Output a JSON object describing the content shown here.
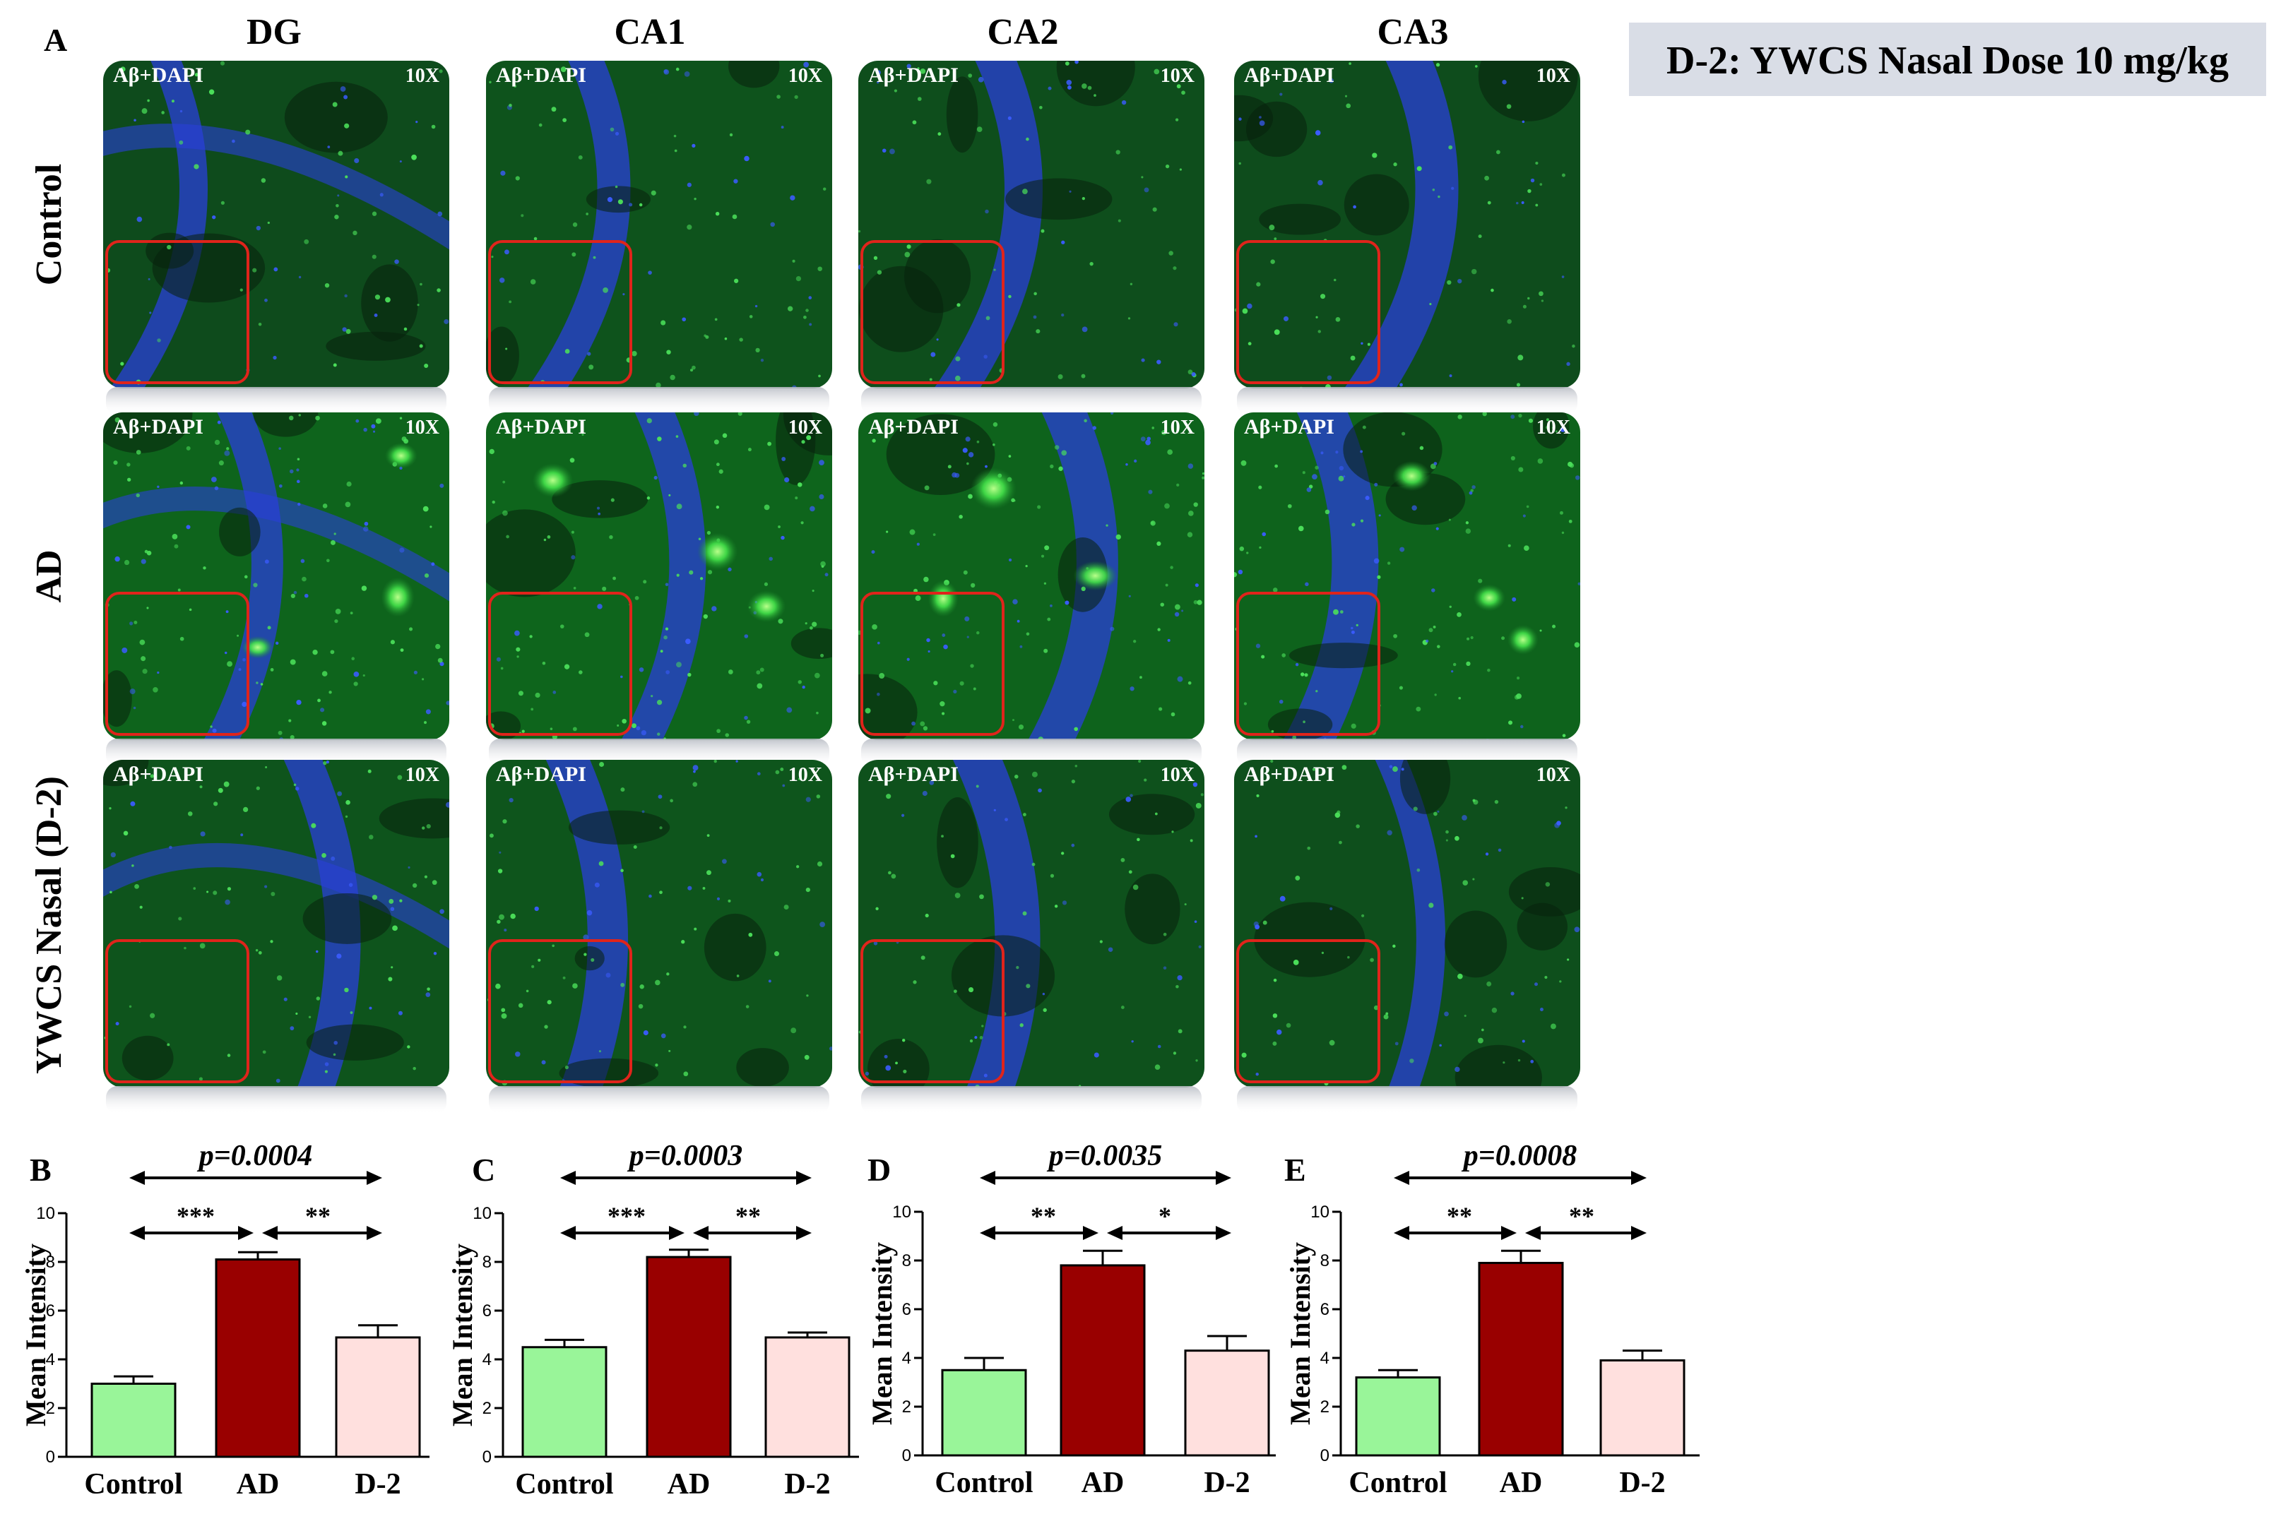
{
  "panel_a_label": "A",
  "dose_banner": "D-2: YWCS Nasal Dose 10 mg/kg",
  "columns": [
    "DG",
    "CA1",
    "CA2",
    "CA3"
  ],
  "rows": [
    "Control",
    "AD",
    "YWCS Nasal (D-2)"
  ],
  "image_stain_label": "Aβ+DAPI",
  "image_magnification": "10X",
  "stain_levels": [
    [
      0.3,
      0.45,
      0.35,
      0.32
    ],
    [
      0.8,
      0.82,
      0.78,
      0.78
    ],
    [
      0.48,
      0.49,
      0.42,
      0.38
    ]
  ],
  "colors": {
    "control": "#99f599",
    "ad": "#990000",
    "d2": "#ffe0de",
    "inset_box": "#e0241b",
    "tissue_green": "#1e7a28",
    "nuclei_blue": "#2a3fd8",
    "banner_bg": "#d9dde6"
  },
  "chart_data": [
    {
      "type": "bar",
      "panel": "B",
      "p_value": "p=0.0004",
      "categories": [
        "Control",
        "AD",
        "D-2"
      ],
      "values": [
        3.0,
        8.1,
        4.9
      ],
      "errors": [
        0.3,
        0.3,
        0.5
      ],
      "ylabel": "Mean Intensity",
      "ylim": [
        0,
        10
      ],
      "yticks": [
        0,
        2,
        4,
        6,
        8,
        10
      ],
      "sig_left": "***",
      "sig_right": "**"
    },
    {
      "type": "bar",
      "panel": "C",
      "p_value": "p=0.0003",
      "categories": [
        "Control",
        "AD",
        "D-2"
      ],
      "values": [
        4.5,
        8.2,
        4.9
      ],
      "errors": [
        0.3,
        0.3,
        0.2
      ],
      "ylabel": "Mean Intensity",
      "ylim": [
        0,
        10
      ],
      "yticks": [
        0,
        2,
        4,
        6,
        8,
        10
      ],
      "sig_left": "***",
      "sig_right": "**"
    },
    {
      "type": "bar",
      "panel": "D",
      "p_value": "p=0.0035",
      "categories": [
        "Control",
        "AD",
        "D-2"
      ],
      "values": [
        3.5,
        7.8,
        4.3
      ],
      "errors": [
        0.5,
        0.6,
        0.6
      ],
      "ylabel": "Mean Intensity",
      "ylim": [
        0,
        10
      ],
      "yticks": [
        0,
        2,
        4,
        6,
        8,
        10
      ],
      "sig_left": "**",
      "sig_right": "*"
    },
    {
      "type": "bar",
      "panel": "E",
      "p_value": "p=0.0008",
      "categories": [
        "Control",
        "AD",
        "D-2"
      ],
      "values": [
        3.2,
        7.9,
        3.9
      ],
      "errors": [
        0.3,
        0.5,
        0.4
      ],
      "ylabel": "Mean Intensity",
      "ylim": [
        0,
        10
      ],
      "yticks": [
        0,
        2,
        4,
        6,
        8,
        10
      ],
      "sig_left": "**",
      "sig_right": "**"
    }
  ]
}
